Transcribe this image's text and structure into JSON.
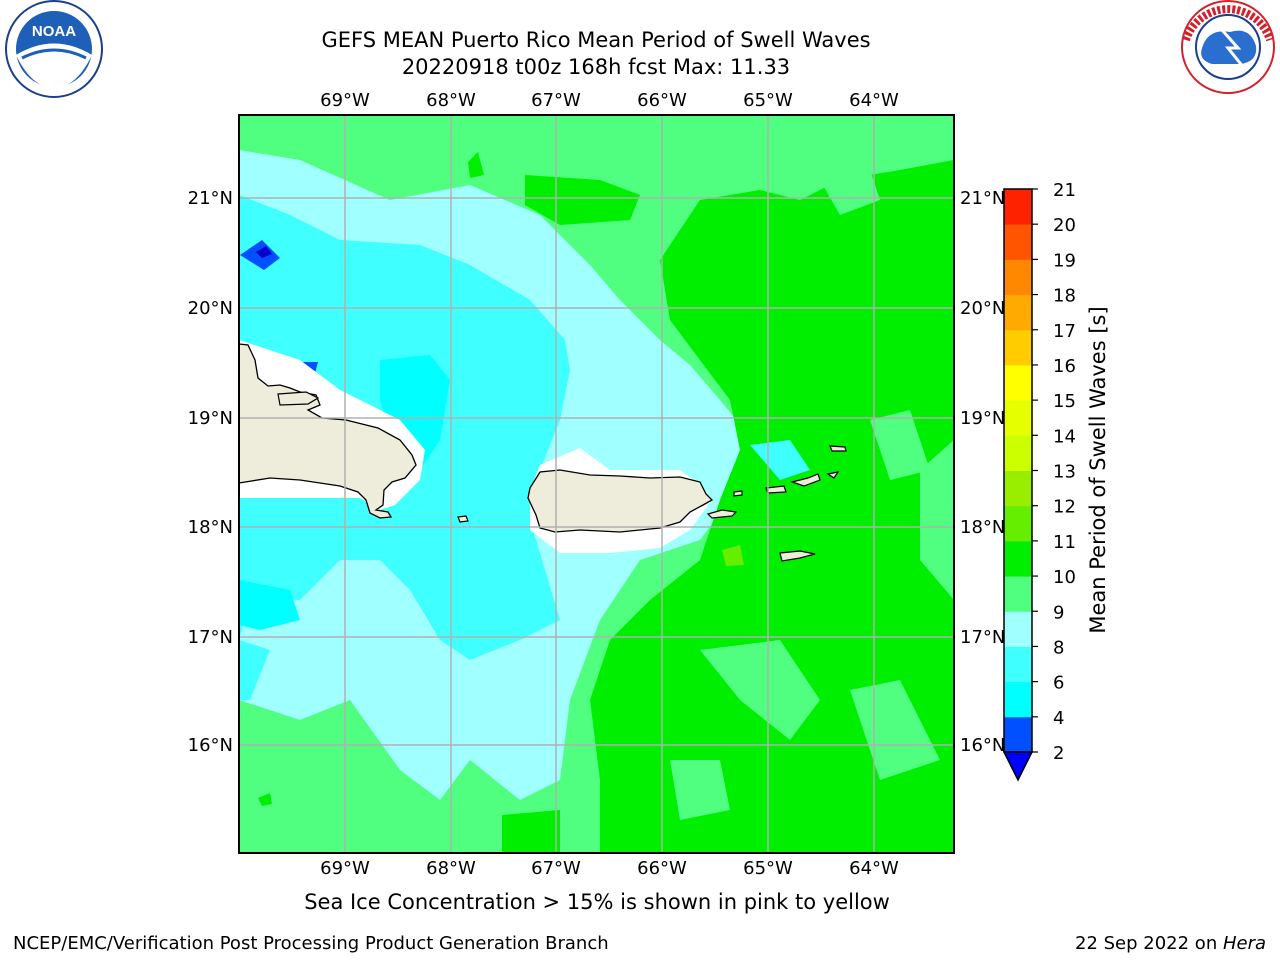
{
  "header": {
    "title_line1": "GEFS MEAN Puerto Rico Mean Period of Swell Waves",
    "title_line2": "20220918 t00z 168h fcst   Max: 11.33"
  },
  "logos": {
    "left": {
      "name": "noaa-logo",
      "text": "NOAA"
    },
    "right": {
      "name": "nws-logo",
      "text": "NATIONAL WEATHER SERVICE"
    }
  },
  "map": {
    "lon_ticks_top": [
      "69°W",
      "68°W",
      "67°W",
      "66°W",
      "65°W",
      "64°W"
    ],
    "lon_ticks_bottom": [
      "69°W",
      "68°W",
      "67°W",
      "66°W",
      "65°W",
      "64°W"
    ],
    "lat_ticks_left": [
      "21°N",
      "20°N",
      "19°N",
      "18°N",
      "17°N",
      "16°N"
    ],
    "lat_ticks_right": [
      "21°N",
      "20°N",
      "19°N",
      "18°N",
      "17°N",
      "16°N"
    ],
    "land_color": "#eeecda",
    "grid_color": "#b0b0b0"
  },
  "colorbar": {
    "label": "Mean Period of Swell Waves [s]",
    "ticks": [
      "2",
      "4",
      "6",
      "8",
      "9",
      "10",
      "11",
      "12",
      "13",
      "14",
      "15",
      "16",
      "17",
      "18",
      "19",
      "20",
      "21"
    ],
    "colors": [
      "#0050ff",
      "#00ffff",
      "#40ffff",
      "#a0ffff",
      "#50ff80",
      "#00ee00",
      "#66ee00",
      "#99ee00",
      "#ccff00",
      "#e6ff00",
      "#ffff00",
      "#ffcc00",
      "#ffaa00",
      "#ff8800",
      "#ff5500",
      "#ff2200",
      "#ff0000"
    ],
    "extend_color": "#0000ff"
  },
  "note": "Sea Ice Concentration > 15% is shown in pink to yellow",
  "footer": {
    "left": "NCEP/EMC/Verification Post Processing Product Generation Branch",
    "right_date": "22 Sep 2022 on ",
    "right_host": "Hera"
  }
}
